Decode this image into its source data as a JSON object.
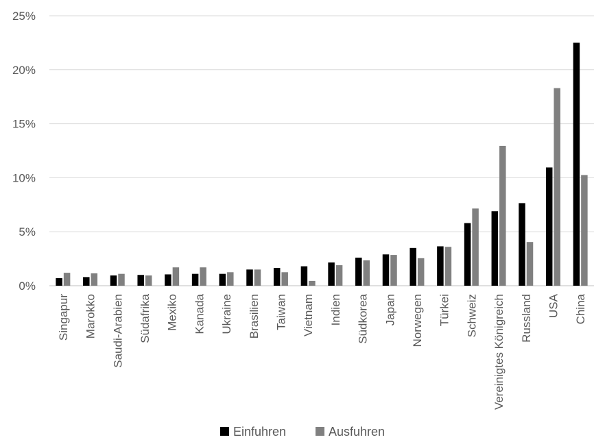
{
  "chart_data": {
    "type": "bar",
    "categories": [
      "Singapur",
      "Marokko",
      "Saudi-Arabien",
      "Südafrika",
      "Mexiko",
      "Kanada",
      "Ukraine",
      "Brasilien",
      "Taiwan",
      "Vietnam",
      "Indien",
      "Südkorea",
      "Japan",
      "Norwegen",
      "Türkei",
      "Schweiz",
      "Vereinigtes Königreich",
      "Russland",
      "USA",
      "China"
    ],
    "series": [
      {
        "name": "Einfuhren",
        "color": "#000000",
        "values": [
          0.7,
          0.8,
          0.95,
          1.0,
          1.05,
          1.1,
          1.1,
          1.5,
          1.65,
          1.8,
          2.15,
          2.6,
          2.9,
          3.5,
          3.65,
          5.8,
          6.9,
          7.65,
          10.95,
          22.5
        ]
      },
      {
        "name": "Ausfuhren",
        "color": "#808080",
        "values": [
          1.2,
          1.15,
          1.1,
          0.95,
          1.7,
          1.7,
          1.25,
          1.5,
          1.25,
          0.45,
          1.9,
          2.35,
          2.85,
          2.55,
          3.6,
          7.15,
          12.95,
          4.05,
          18.3,
          10.25
        ]
      }
    ],
    "yticks": [
      "0%",
      "5%",
      "10%",
      "15%",
      "20%",
      "25%"
    ],
    "ylim": [
      0,
      25
    ],
    "grid": true,
    "legend_position": "bottom"
  }
}
